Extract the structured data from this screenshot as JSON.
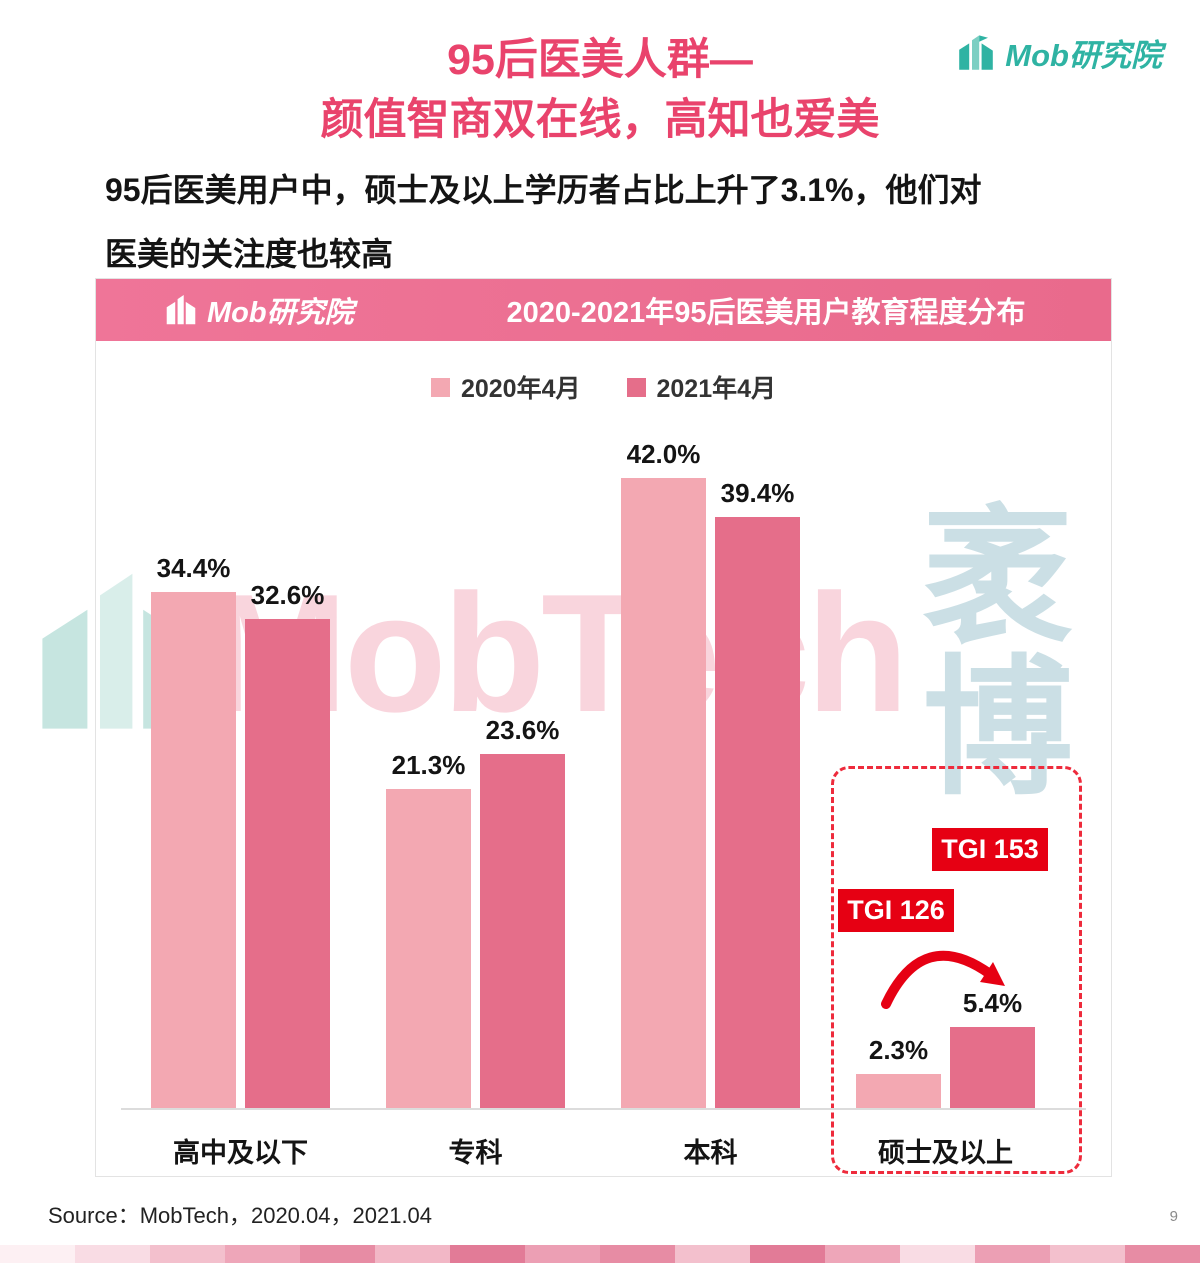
{
  "header": {
    "title_line1": "95后医美人群—",
    "title_line2": "颜值智商双在线，高知也爱美",
    "subtitle_line1": "95后医美用户中，硕士及以上学历者占比上升了3.1%，他们对",
    "subtitle_line2": "医美的关注度也较高"
  },
  "brand": {
    "logo_text": "Mob研究院"
  },
  "colors": {
    "title_pink": "#E9436C",
    "banner_pink": "#EC6E90",
    "series_2020": "#F3A8B2",
    "series_2021": "#E56E8A",
    "badge_red": "#E60013",
    "highlight_dash_red": "#EE2B3C",
    "logo_teal": "#2FB3A3"
  },
  "chart_data": {
    "type": "bar",
    "title": "2020-2021年95后医美用户教育程度分布",
    "categories": [
      "高中及以下",
      "专科",
      "本科",
      "硕士及以上"
    ],
    "series": [
      {
        "name": "2020年4月",
        "color": "#F3A8B2",
        "values": [
          34.4,
          21.3,
          42.0,
          2.3
        ]
      },
      {
        "name": "2021年4月",
        "color": "#E56E8A",
        "values": [
          32.6,
          23.6,
          39.4,
          5.4
        ]
      }
    ],
    "value_suffix": "%",
    "ylabel": "",
    "xlabel": "",
    "ylim": [
      0,
      46
    ],
    "grid": false,
    "legend_position": "top",
    "highlight_category": "硕士及以上",
    "annotations": [
      {
        "label": "TGI 126",
        "target": "硕士及以上 2020年4月"
      },
      {
        "label": "TGI 153",
        "target": "硕士及以上 2021年4月"
      }
    ]
  },
  "watermark": {
    "text_latin": "MobTech",
    "text_cjk": "袤博"
  },
  "footer": {
    "source": "Source：MobTech，2020.04，2021.04",
    "page_number": "9",
    "strip_colors": [
      "#FDF0F3",
      "#F9DCE4",
      "#F3C0CD",
      "#EEA6B9",
      "#E78CA4",
      "#F2B7C6",
      "#E27B97",
      "#EC9FB4",
      "#E78CA4",
      "#F3C0CD",
      "#E27B97",
      "#EEA6B9",
      "#F9DCE4",
      "#EC9FB4",
      "#F3C0CD",
      "#E78CA4"
    ]
  }
}
